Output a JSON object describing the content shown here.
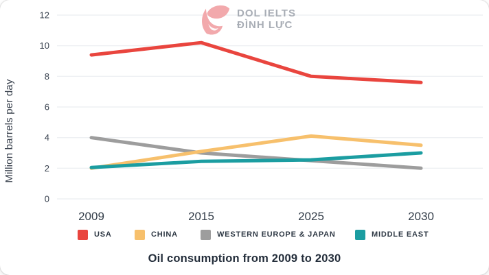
{
  "logo": {
    "line1": "DOL IELTS",
    "line2": "ĐÌNH LỰC",
    "mark_color": "#f2a9ac",
    "text_color": "#a8adb5"
  },
  "chart_data": {
    "type": "line",
    "title": "Oil consumption from 2009 to 2030",
    "xlabel": "",
    "ylabel": "Million barrels per day",
    "categories": [
      "2009",
      "2015",
      "2025",
      "2030"
    ],
    "y_ticks": [
      0,
      2,
      4,
      6,
      8,
      10,
      12
    ],
    "ylim": [
      0,
      12
    ],
    "grid": true,
    "legend_position": "bottom",
    "series": [
      {
        "name": "USA",
        "color": "#e9453e",
        "values": [
          9.4,
          10.2,
          8.0,
          7.6
        ]
      },
      {
        "name": "CHINA",
        "color": "#f7c06c",
        "values": [
          2.0,
          3.1,
          4.1,
          3.5
        ]
      },
      {
        "name": "WESTERN EUROPE & JAPAN",
        "color": "#9d9d9d",
        "values": [
          4.0,
          3.0,
          2.5,
          2.0
        ]
      },
      {
        "name": "MIDDLE EAST",
        "color": "#1b9da1",
        "values": [
          2.05,
          2.45,
          2.55,
          3.0
        ]
      }
    ],
    "gridline_color": "#eef0f3",
    "tick_color": "#3a4350"
  }
}
